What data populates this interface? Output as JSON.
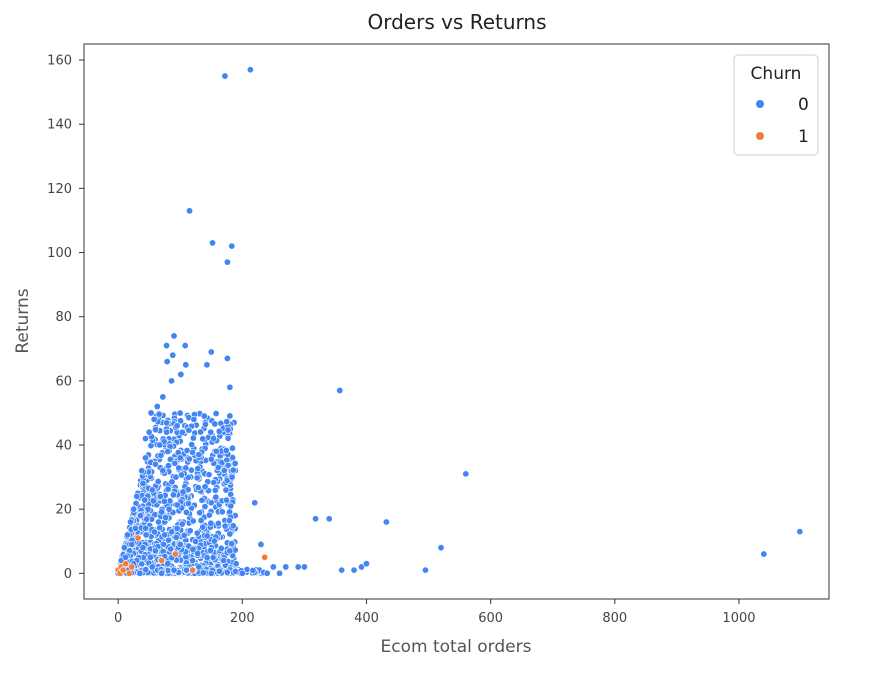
{
  "chart_data": {
    "type": "scatter",
    "title": "Orders vs Returns",
    "xlabel": "Ecom total orders",
    "ylabel": "Returns",
    "xlim": [
      -55,
      1145
    ],
    "ylim": [
      -8,
      165
    ],
    "xticks": [
      0,
      200,
      400,
      600,
      800,
      1000
    ],
    "yticks": [
      0,
      20,
      40,
      60,
      80,
      100,
      120,
      140,
      160
    ],
    "grid": false,
    "legend": {
      "title": "Churn",
      "placement": "top-right",
      "entries": [
        {
          "label": "0",
          "color": "#4285f4"
        },
        {
          "label": "1",
          "color": "#f07f3c"
        }
      ]
    },
    "series": [
      {
        "name": "0",
        "color": "#4285f4",
        "points": [
          [
            213,
            157
          ],
          [
            172,
            155
          ],
          [
            115,
            113
          ],
          [
            152,
            103
          ],
          [
            183,
            102
          ],
          [
            176,
            97
          ],
          [
            90,
            74
          ],
          [
            78,
            71
          ],
          [
            108,
            71
          ],
          [
            150,
            69
          ],
          [
            88,
            68
          ],
          [
            176,
            67
          ],
          [
            79,
            66
          ],
          [
            143,
            65
          ],
          [
            109,
            65
          ],
          [
            101,
            62
          ],
          [
            86,
            60
          ],
          [
            180,
            58
          ],
          [
            357,
            57
          ],
          [
            72,
            55
          ],
          [
            63,
            52
          ],
          [
            53,
            50
          ],
          [
            58,
            48
          ],
          [
            122,
            48
          ],
          [
            95,
            46
          ],
          [
            78,
            44
          ],
          [
            44,
            42
          ],
          [
            50,
            44
          ],
          [
            67,
            40
          ],
          [
            80,
            38
          ],
          [
            100,
            36
          ],
          [
            130,
            37
          ],
          [
            44,
            36
          ],
          [
            60,
            34
          ],
          [
            38,
            32
          ],
          [
            72,
            32
          ],
          [
            93,
            30
          ],
          [
            40,
            28
          ],
          [
            140,
            27
          ],
          [
            55,
            26
          ],
          [
            30,
            24
          ],
          [
            68,
            24
          ],
          [
            150,
            22
          ],
          [
            220,
            22
          ],
          [
            25,
            20
          ],
          [
            48,
            20
          ],
          [
            82,
            20
          ],
          [
            110,
            19
          ],
          [
            20,
            16
          ],
          [
            36,
            18
          ],
          [
            65,
            16
          ],
          [
            95,
            14
          ],
          [
            318,
            17
          ],
          [
            340,
            17
          ],
          [
            432,
            16
          ],
          [
            15,
            12
          ],
          [
            28,
            14
          ],
          [
            45,
            12
          ],
          [
            75,
            12
          ],
          [
            560,
            31
          ],
          [
            10,
            8
          ],
          [
            22,
            9
          ],
          [
            40,
            8
          ],
          [
            60,
            7
          ],
          [
            100,
            9
          ],
          [
            180,
            7
          ],
          [
            230,
            9
          ],
          [
            520,
            8
          ],
          [
            5,
            4
          ],
          [
            12,
            5
          ],
          [
            30,
            4
          ],
          [
            52,
            5
          ],
          [
            80,
            3
          ],
          [
            120,
            4
          ],
          [
            170,
            4
          ],
          [
            250,
            2
          ],
          [
            270,
            2
          ],
          [
            300,
            2
          ],
          [
            360,
            1
          ],
          [
            380,
            1
          ],
          [
            392,
            2
          ],
          [
            400,
            3
          ],
          [
            495,
            1
          ],
          [
            1040,
            6
          ],
          [
            1098,
            13
          ],
          [
            3,
            1
          ],
          [
            8,
            2
          ],
          [
            16,
            1
          ],
          [
            35,
            0
          ],
          [
            70,
            0
          ],
          [
            110,
            1
          ],
          [
            150,
            0
          ],
          [
            200,
            0
          ],
          [
            240,
            0
          ],
          [
            260,
            0
          ],
          [
            290,
            2
          ],
          [
            25,
            3
          ],
          [
            55,
            2
          ],
          [
            90,
            1
          ],
          [
            130,
            2
          ],
          [
            190,
            3
          ]
        ]
      },
      {
        "name": "1",
        "color": "#f07f3c",
        "points": [
          [
            0,
            1
          ],
          [
            3,
            0
          ],
          [
            5,
            2
          ],
          [
            8,
            1
          ],
          [
            12,
            3
          ],
          [
            18,
            0
          ],
          [
            22,
            2
          ],
          [
            32,
            11
          ],
          [
            92,
            6
          ],
          [
            236,
            5
          ],
          [
            120,
            1
          ],
          [
            70,
            4
          ]
        ]
      }
    ]
  }
}
